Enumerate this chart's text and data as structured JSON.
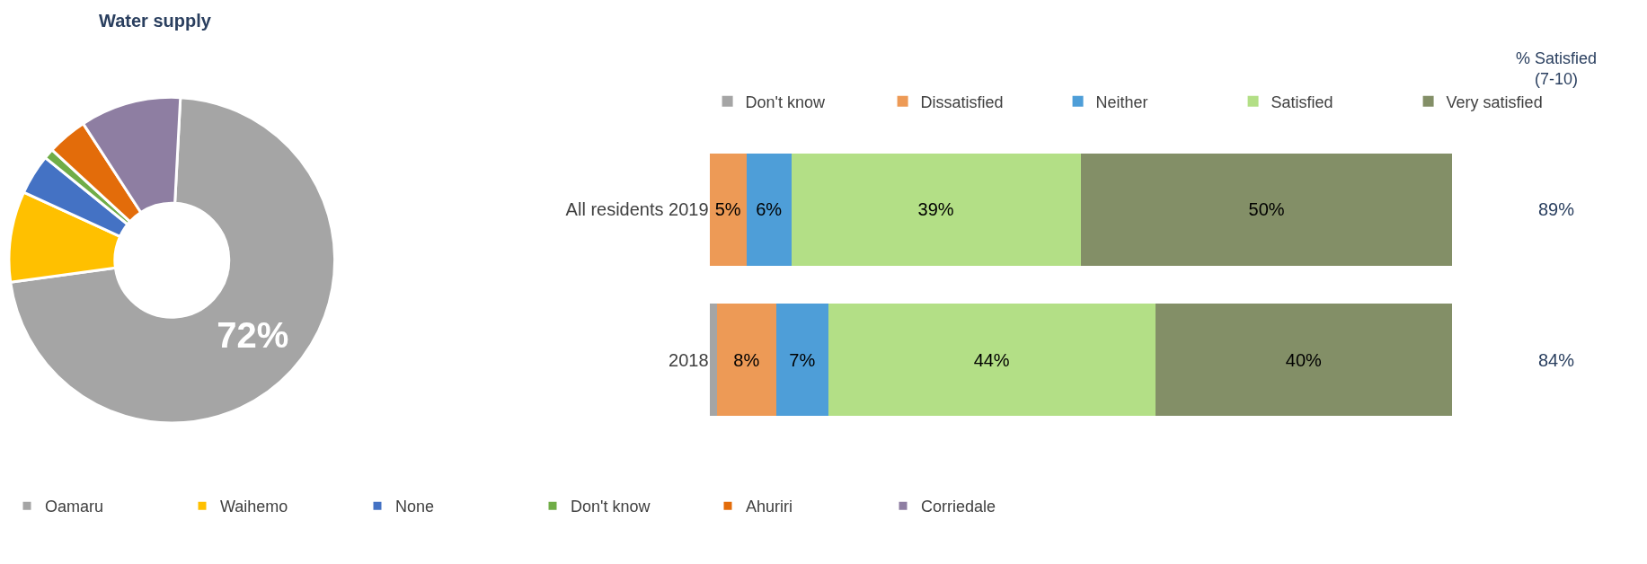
{
  "chart_data": [
    {
      "type": "donut",
      "title": "Water supply",
      "categories": [
        "Oamaru",
        "Waihemo",
        "None",
        "Don't know",
        "Ahuriri",
        "Corriedale"
      ],
      "values": [
        72,
        9,
        4,
        1,
        4,
        10
      ],
      "colors": [
        "#a5a5a5",
        "#ffc000",
        "#4472c4",
        "#70ad47",
        "#e36c0a",
        "#8e7ea2"
      ],
      "value_labels": [
        "72%",
        null,
        null,
        null,
        null,
        null
      ],
      "legend": "bottom"
    },
    {
      "type": "bar",
      "orientation": "horizontal",
      "stacked": true,
      "categories": [
        "All residents 2019",
        "2018"
      ],
      "series": [
        {
          "name": "Don't know",
          "color": "#a5a5a5",
          "values": [
            0,
            1
          ],
          "value_labels": [
            null,
            null
          ]
        },
        {
          "name": "Dissatisfied",
          "color": "#ed9a56",
          "values": [
            5,
            8
          ],
          "value_labels": [
            "5%",
            "8%"
          ]
        },
        {
          "name": "Neither",
          "color": "#4e9ed8",
          "values": [
            6,
            7
          ],
          "value_labels": [
            "6%",
            "7%"
          ]
        },
        {
          "name": "Satisfied",
          "color": "#b3df86",
          "values": [
            39,
            44
          ],
          "value_labels": [
            "39%",
            "44%"
          ]
        },
        {
          "name": "Very satisfied",
          "color": "#838f67",
          "values": [
            50,
            40
          ],
          "value_labels": [
            "50%",
            "40%"
          ]
        }
      ],
      "annotations": [
        "% Satisfied\n(7-10)",
        "89%",
        "84%"
      ],
      "legend": "top",
      "tick_labels": "y"
    }
  ]
}
